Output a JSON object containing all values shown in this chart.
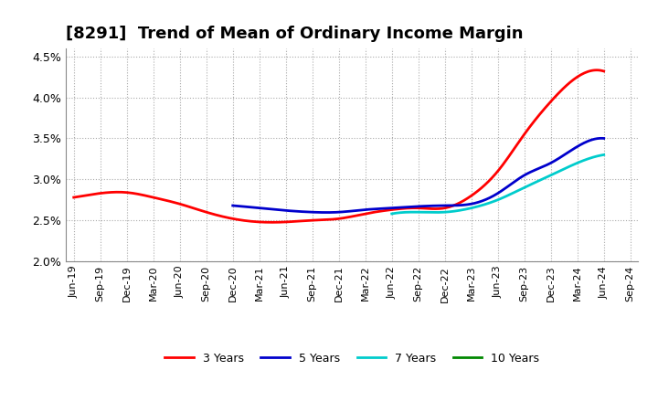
{
  "title": "[8291]  Trend of Mean of Ordinary Income Margin",
  "title_fontsize": 13,
  "background_color": "#ffffff",
  "plot_bg_color": "#ffffff",
  "grid_color": "#aaaaaa",
  "x_ticklabels": [
    "Jun-19",
    "Sep-19",
    "Dec-19",
    "Mar-20",
    "Jun-20",
    "Sep-20",
    "Dec-20",
    "Mar-21",
    "Jun-21",
    "Sep-21",
    "Dec-21",
    "Mar-22",
    "Jun-22",
    "Sep-22",
    "Dec-22",
    "Mar-23",
    "Jun-23",
    "Sep-23",
    "Dec-23",
    "Mar-24",
    "Jun-24",
    "Sep-24"
  ],
  "ylim": [
    0.02,
    0.046
  ],
  "yticks": [
    0.02,
    0.025,
    0.03,
    0.035,
    0.04,
    0.045
  ],
  "series": [
    {
      "name": "3 Years",
      "color": "#ff0000",
      "values": [
        0.0278,
        0.0283,
        0.0284,
        0.0278,
        0.027,
        0.026,
        0.0252,
        0.0248,
        0.0248,
        0.025,
        0.0252,
        0.0258,
        0.0263,
        0.0265,
        0.0265,
        0.028,
        0.031,
        0.0355,
        0.0395,
        0.0425,
        0.0432,
        null
      ]
    },
    {
      "name": "5 Years",
      "color": "#0000cc",
      "values": [
        null,
        null,
        null,
        null,
        null,
        null,
        0.0268,
        0.0265,
        0.0262,
        0.026,
        0.026,
        0.0263,
        0.0265,
        0.0267,
        0.0268,
        0.027,
        0.0283,
        0.0305,
        0.032,
        0.034,
        0.035,
        null
      ]
    },
    {
      "name": "7 Years",
      "color": "#00cccc",
      "values": [
        null,
        null,
        null,
        null,
        null,
        null,
        null,
        null,
        null,
        null,
        null,
        null,
        0.0258,
        0.026,
        0.026,
        0.0265,
        0.0275,
        0.029,
        0.0305,
        0.032,
        0.033,
        null
      ]
    },
    {
      "name": "10 Years",
      "color": "#008800",
      "values": [
        null,
        null,
        null,
        null,
        null,
        null,
        null,
        null,
        null,
        null,
        null,
        null,
        null,
        null,
        null,
        null,
        null,
        null,
        null,
        null,
        null,
        null
      ]
    }
  ]
}
